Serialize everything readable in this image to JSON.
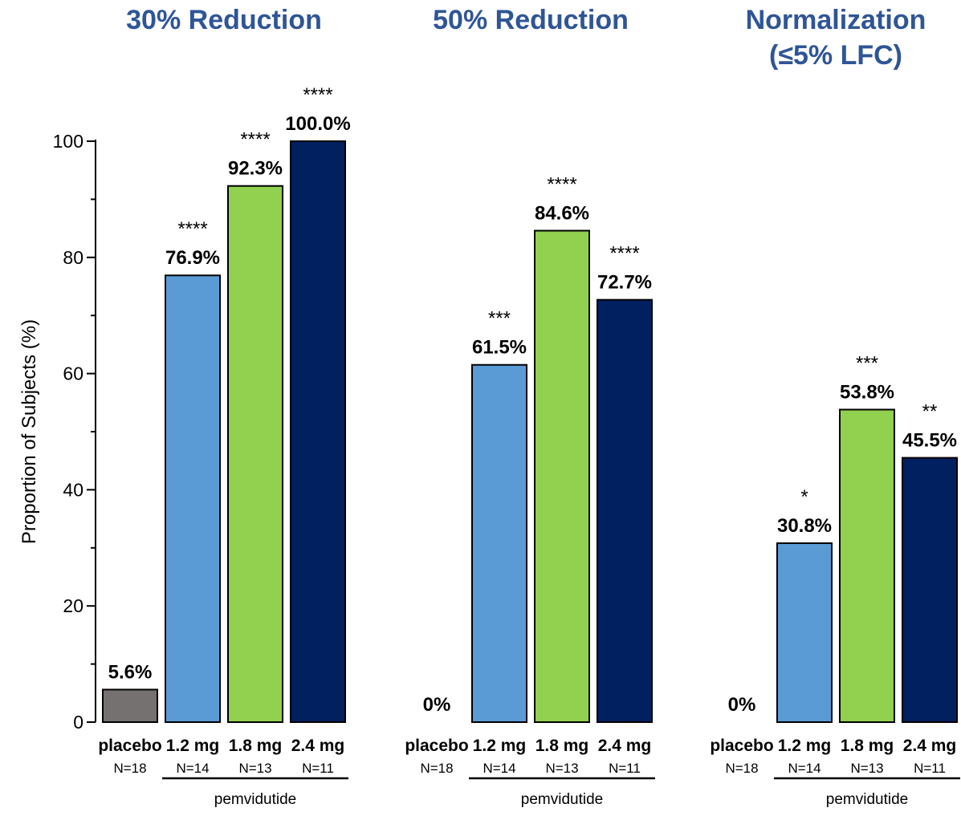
{
  "chart_data": {
    "type": "bar",
    "ylabel": "Proportion of Subjects (%)",
    "ylim": [
      0,
      100
    ],
    "yticks": [
      0,
      20,
      40,
      60,
      80,
      100
    ],
    "group_label": "pemvidutide",
    "categories": [
      "placebo",
      "1.2 mg",
      "1.8 mg",
      "2.4 mg"
    ],
    "n_labels": [
      "N=18",
      "N=14",
      "N=13",
      "N=11"
    ],
    "colors": [
      "#767171",
      "#5b9bd5",
      "#92d050",
      "#002060"
    ],
    "groups": [
      {
        "title_lines": [
          "30% Reduction"
        ],
        "values": [
          5.6,
          76.9,
          92.3,
          100.0
        ],
        "value_labels": [
          "5.6%",
          "76.9%",
          "92.3%",
          "100.0%"
        ],
        "significance": [
          "",
          "****",
          "****",
          "****"
        ]
      },
      {
        "title_lines": [
          "50% Reduction"
        ],
        "values": [
          0,
          61.5,
          84.6,
          72.7
        ],
        "value_labels": [
          "0%",
          "61.5%",
          "84.6%",
          "72.7%"
        ],
        "significance": [
          "",
          "***",
          "****",
          "****"
        ]
      },
      {
        "title_lines": [
          "Normalization",
          "(≤5% LFC)"
        ],
        "values": [
          0,
          30.8,
          53.8,
          45.5
        ],
        "value_labels": [
          "0%",
          "30.8%",
          "53.8%",
          "45.5%"
        ],
        "significance": [
          "",
          "*",
          "***",
          "**"
        ]
      }
    ]
  }
}
